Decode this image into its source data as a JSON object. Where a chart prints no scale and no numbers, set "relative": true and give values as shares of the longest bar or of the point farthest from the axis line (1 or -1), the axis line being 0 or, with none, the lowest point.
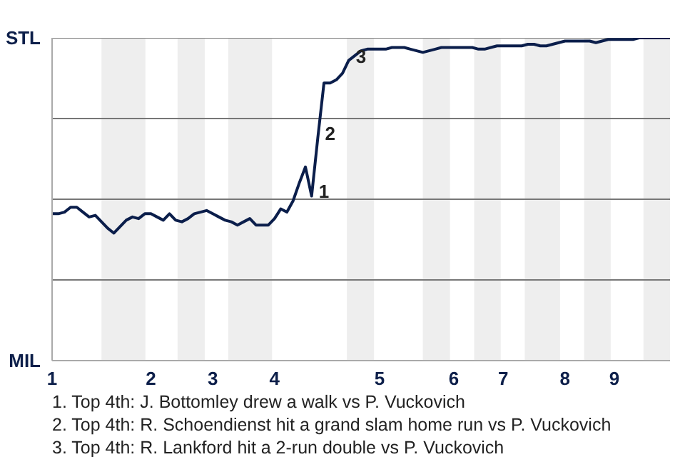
{
  "chart_data": {
    "type": "line",
    "relative": true,
    "categories": [
      "1",
      null,
      null,
      null,
      null,
      null,
      null,
      null,
      null,
      null,
      null,
      null,
      null,
      null,
      null,
      null,
      "2",
      null,
      null,
      null,
      null,
      null,
      null,
      null,
      null,
      null,
      "3",
      null,
      null,
      null,
      null,
      null,
      null,
      null,
      null,
      null,
      "4",
      null,
      null,
      null,
      null,
      null,
      null,
      null,
      null,
      null,
      null,
      null,
      null,
      null,
      null,
      null,
      null,
      "5",
      null,
      null,
      null,
      null,
      null,
      null,
      null,
      null,
      null,
      null,
      null,
      "6",
      null,
      null,
      null,
      null,
      null,
      null,
      null,
      "7",
      null,
      null,
      null,
      null,
      null,
      null,
      null,
      null,
      null,
      "8",
      null,
      null,
      null,
      null,
      null,
      null,
      null,
      "9",
      null,
      null,
      null,
      null,
      null,
      null,
      null,
      null,
      null
    ],
    "series": [
      {
        "color": "#0b1e4b",
        "values": [
          0.455,
          0.455,
          0.46,
          0.475,
          0.475,
          0.46,
          0.445,
          0.45,
          0.43,
          0.41,
          0.395,
          0.415,
          0.435,
          0.445,
          0.44,
          0.455,
          0.455,
          0.445,
          0.435,
          0.455,
          0.435,
          0.43,
          0.44,
          0.455,
          0.46,
          0.465,
          0.455,
          0.445,
          0.435,
          0.43,
          0.42,
          0.43,
          0.44,
          0.42,
          0.42,
          0.42,
          0.44,
          0.47,
          0.46,
          0.495,
          0.55,
          0.6,
          0.51,
          0.69,
          0.86,
          0.86,
          0.87,
          0.89,
          0.93,
          0.945,
          0.96,
          0.965,
          0.965,
          0.965,
          0.965,
          0.97,
          0.97,
          0.97,
          0.965,
          0.96,
          0.955,
          0.96,
          0.965,
          0.97,
          0.97,
          0.97,
          0.97,
          0.97,
          0.97,
          0.965,
          0.965,
          0.97,
          0.975,
          0.975,
          0.975,
          0.975,
          0.975,
          0.98,
          0.98,
          0.975,
          0.975,
          0.98,
          0.985,
          0.99,
          0.99,
          0.99,
          0.99,
          0.99,
          0.985,
          0.99,
          0.995,
          0.995,
          0.995,
          0.995,
          0.995,
          1.0,
          1.0,
          1.0,
          1.0,
          1.0,
          1.0
        ]
      }
    ],
    "ref_lines": [
      {
        "axis": "y",
        "value": 0.25,
        "color": "#777777"
      },
      {
        "axis": "y",
        "value": 0.5,
        "color": "#777777"
      },
      {
        "axis": "y",
        "value": 0.75,
        "color": "#777777"
      },
      {
        "axis": "y",
        "value": 1,
        "color": "#777777"
      }
    ],
    "annotations": [
      "STL",
      "MIL",
      "1",
      "2",
      "3",
      "1. Top 4th: J. Bottomley drew a walk vs P. Vuckovich",
      "2. Top 4th: R. Schoendienst hit a grand slam home run vs P. Vuckovich",
      "3. Top 4th: R. Lankford hit a 2-run double vs P. Vuckovich"
    ]
  }
}
